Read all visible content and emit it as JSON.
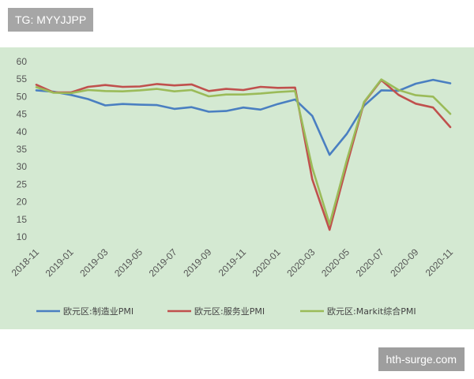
{
  "overlay": {
    "tag_text": "TG: MYYJJPP",
    "watermark_text": "hth-surge.com"
  },
  "chart_data": {
    "type": "line",
    "x": [
      "2018-11",
      "2018-12",
      "2019-01",
      "2019-02",
      "2019-03",
      "2019-04",
      "2019-05",
      "2019-06",
      "2019-07",
      "2019-08",
      "2019-09",
      "2019-10",
      "2019-11",
      "2019-12",
      "2020-01",
      "2020-02",
      "2020-03",
      "2020-04",
      "2020-05",
      "2020-06",
      "2020-07",
      "2020-08",
      "2020-09",
      "2020-10",
      "2020-11"
    ],
    "x_tick_labels": [
      "2018-11",
      "2019-01",
      "2019-03",
      "2019-05",
      "2019-07",
      "2019-09",
      "2019-11",
      "2020-01",
      "2020-03",
      "2020-05",
      "2020-07",
      "2020-09",
      "2020-11"
    ],
    "ylim": [
      0,
      60
    ],
    "y_ticks": [
      10,
      15,
      20,
      25,
      30,
      35,
      40,
      45,
      50,
      55,
      60
    ],
    "grid": false,
    "legend_position": "bottom",
    "series": [
      {
        "name": "欧元区:制造业PMI",
        "color": "#4a7fc1",
        "values": [
          51.8,
          51.4,
          50.5,
          49.3,
          47.5,
          47.9,
          47.7,
          47.6,
          46.5,
          47.0,
          45.7,
          45.9,
          46.9,
          46.3,
          47.9,
          49.2,
          44.5,
          33.4,
          39.4,
          47.4,
          51.8,
          51.7,
          53.7,
          54.8,
          53.8
        ]
      },
      {
        "name": "欧元区:服务业PMI",
        "color": "#c0504d",
        "values": [
          53.4,
          51.2,
          51.2,
          52.8,
          53.3,
          52.8,
          52.9,
          53.6,
          53.2,
          53.5,
          51.6,
          52.2,
          51.9,
          52.8,
          52.5,
          52.6,
          26.4,
          12.0,
          30.5,
          48.3,
          54.7,
          50.5,
          48.0,
          46.9,
          41.3
        ]
      },
      {
        "name": "欧元区:Markit综合PMI",
        "color": "#9bbb59",
        "values": [
          52.7,
          51.1,
          51.0,
          51.9,
          51.6,
          51.5,
          51.8,
          52.2,
          51.5,
          51.9,
          50.1,
          50.6,
          50.6,
          50.9,
          51.3,
          51.6,
          29.7,
          13.6,
          31.9,
          48.5,
          54.9,
          51.9,
          50.4,
          50.0,
          45.1
        ]
      }
    ]
  }
}
